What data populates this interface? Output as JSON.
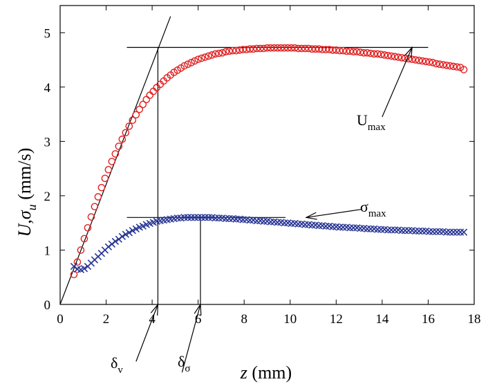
{
  "chart_data": {
    "type": "scatter",
    "xlabel": {
      "var": "z",
      "unit": " (mm)"
    },
    "ylabel": {
      "main": "U,σ",
      "sub": "u",
      "unit": " (mm/s)"
    },
    "xlim": [
      0,
      18
    ],
    "ylim": [
      0,
      5.5
    ],
    "x_ticks": [
      0,
      2,
      4,
      6,
      8,
      10,
      12,
      14,
      16,
      18
    ],
    "y_ticks": [
      0,
      1,
      2,
      3,
      4,
      5
    ],
    "grid": false,
    "series": [
      {
        "marker": "circle",
        "color": "#e02020",
        "x": [
          0.6,
          0.75,
          0.9,
          1.05,
          1.2,
          1.35,
          1.5,
          1.65,
          1.8,
          1.95,
          2.1,
          2.25,
          2.4,
          2.55,
          2.7,
          2.85,
          3.0,
          3.15,
          3.3,
          3.45,
          3.6,
          3.75,
          3.9,
          4.05,
          4.2,
          4.35,
          4.5,
          4.65,
          4.8,
          4.95,
          5.1,
          5.25,
          5.4,
          5.55,
          5.7,
          5.85,
          6.0,
          6.15,
          6.3,
          6.45,
          6.6,
          6.75,
          6.9,
          7.05,
          7.2,
          7.35,
          7.5,
          7.65,
          7.8,
          7.95,
          8.1,
          8.25,
          8.4,
          8.55,
          8.7,
          8.85,
          9.0,
          9.15,
          9.3,
          9.45,
          9.6,
          9.75,
          9.9,
          10.05,
          10.2,
          10.35,
          10.5,
          10.65,
          10.8,
          10.95,
          11.1,
          11.25,
          11.4,
          11.55,
          11.7,
          11.85,
          12.0,
          12.15,
          12.3,
          12.45,
          12.6,
          12.75,
          12.9,
          13.05,
          13.2,
          13.35,
          13.5,
          13.65,
          13.8,
          13.95,
          14.1,
          14.25,
          14.4,
          14.55,
          14.7,
          14.85,
          15.0,
          15.15,
          15.3,
          15.45,
          15.6,
          15.75,
          15.9,
          16.05,
          16.2,
          16.35,
          16.5,
          16.65,
          16.8,
          16.95,
          17.1,
          17.25,
          17.4,
          17.55
        ],
        "y": [
          0.55,
          0.78,
          1.0,
          1.21,
          1.41,
          1.61,
          1.8,
          1.98,
          2.15,
          2.32,
          2.48,
          2.63,
          2.77,
          2.91,
          3.04,
          3.16,
          3.28,
          3.39,
          3.49,
          3.59,
          3.68,
          3.77,
          3.85,
          3.92,
          3.99,
          4.05,
          4.11,
          4.17,
          4.22,
          4.27,
          4.31,
          4.35,
          4.39,
          4.42,
          4.45,
          4.48,
          4.51,
          4.53,
          4.55,
          4.57,
          4.59,
          4.61,
          4.62,
          4.63,
          4.65,
          4.66,
          4.67,
          4.67,
          4.68,
          4.69,
          4.69,
          4.7,
          4.7,
          4.71,
          4.71,
          4.71,
          4.72,
          4.72,
          4.72,
          4.72,
          4.72,
          4.72,
          4.72,
          4.72,
          4.72,
          4.71,
          4.71,
          4.71,
          4.71,
          4.7,
          4.7,
          4.7,
          4.69,
          4.69,
          4.69,
          4.68,
          4.68,
          4.67,
          4.67,
          4.66,
          4.66,
          4.65,
          4.65,
          4.64,
          4.63,
          4.63,
          4.62,
          4.61,
          4.61,
          4.6,
          4.59,
          4.58,
          4.57,
          4.56,
          4.55,
          4.54,
          4.53,
          4.52,
          4.51,
          4.5,
          4.49,
          4.48,
          4.47,
          4.46,
          4.45,
          4.43,
          4.42,
          4.41,
          4.4,
          4.39,
          4.38,
          4.37,
          4.36,
          4.32
        ]
      },
      {
        "marker": "x",
        "color": "#283593",
        "x": [
          0.6,
          0.75,
          0.9,
          1.05,
          1.2,
          1.35,
          1.5,
          1.65,
          1.8,
          1.95,
          2.1,
          2.25,
          2.4,
          2.55,
          2.7,
          2.85,
          3.0,
          3.15,
          3.3,
          3.45,
          3.6,
          3.75,
          3.9,
          4.05,
          4.2,
          4.35,
          4.5,
          4.65,
          4.8,
          4.95,
          5.1,
          5.25,
          5.4,
          5.55,
          5.7,
          5.85,
          6.0,
          6.15,
          6.3,
          6.45,
          6.6,
          6.75,
          6.9,
          7.05,
          7.2,
          7.35,
          7.5,
          7.65,
          7.8,
          7.95,
          8.1,
          8.25,
          8.4,
          8.55,
          8.7,
          8.85,
          9.0,
          9.15,
          9.3,
          9.45,
          9.6,
          9.75,
          9.9,
          10.05,
          10.2,
          10.35,
          10.5,
          10.65,
          10.8,
          10.95,
          11.1,
          11.25,
          11.4,
          11.55,
          11.7,
          11.85,
          12.0,
          12.15,
          12.3,
          12.45,
          12.6,
          12.75,
          12.9,
          13.05,
          13.2,
          13.35,
          13.5,
          13.65,
          13.8,
          13.95,
          14.1,
          14.25,
          14.4,
          14.55,
          14.7,
          14.85,
          15.0,
          15.15,
          15.3,
          15.45,
          15.6,
          15.75,
          15.9,
          16.05,
          16.2,
          16.35,
          16.5,
          16.65,
          16.8,
          16.95,
          17.1,
          17.25,
          17.4,
          17.55
        ],
        "y": [
          0.7,
          0.65,
          0.64,
          0.66,
          0.7,
          0.76,
          0.82,
          0.88,
          0.94,
          1.0,
          1.06,
          1.11,
          1.16,
          1.2,
          1.25,
          1.29,
          1.32,
          1.36,
          1.39,
          1.42,
          1.44,
          1.47,
          1.49,
          1.51,
          1.53,
          1.54,
          1.55,
          1.56,
          1.57,
          1.58,
          1.59,
          1.59,
          1.6,
          1.6,
          1.6,
          1.6,
          1.6,
          1.6,
          1.6,
          1.6,
          1.6,
          1.59,
          1.59,
          1.59,
          1.58,
          1.58,
          1.58,
          1.57,
          1.57,
          1.56,
          1.56,
          1.55,
          1.55,
          1.54,
          1.54,
          1.53,
          1.53,
          1.52,
          1.52,
          1.51,
          1.51,
          1.5,
          1.5,
          1.49,
          1.49,
          1.48,
          1.48,
          1.47,
          1.47,
          1.46,
          1.46,
          1.45,
          1.45,
          1.44,
          1.44,
          1.43,
          1.43,
          1.42,
          1.42,
          1.42,
          1.41,
          1.41,
          1.41,
          1.4,
          1.4,
          1.39,
          1.39,
          1.39,
          1.38,
          1.38,
          1.38,
          1.37,
          1.37,
          1.37,
          1.37,
          1.36,
          1.36,
          1.36,
          1.36,
          1.35,
          1.35,
          1.35,
          1.35,
          1.34,
          1.34,
          1.34,
          1.34,
          1.34,
          1.33,
          1.33,
          1.33,
          1.33,
          1.33,
          1.33
        ]
      }
    ],
    "reference_lines": [
      {
        "name": "tangent-line",
        "x1": 0.0,
        "y1": 0.0,
        "x2": 4.8,
        "y2": 5.3
      },
      {
        "name": "umax-horizontal",
        "x1": 2.9,
        "y1": 4.73,
        "x2": 16.0,
        "y2": 4.73
      },
      {
        "name": "delta-v-vertical",
        "x1": 4.25,
        "y1": 4.73,
        "x2": 4.25,
        "y2": 0.0
      },
      {
        "name": "sigma-max-horizontal",
        "x1": 2.9,
        "y1": 1.6,
        "x2": 9.8,
        "y2": 1.6
      },
      {
        "name": "delta-sigma-vertical",
        "x1": 6.1,
        "y1": 1.6,
        "x2": 6.1,
        "y2": 0.0
      }
    ],
    "annotations": [
      {
        "name": "umax",
        "main": "U",
        "sub": "max",
        "tail": [
          14.0,
          3.45
        ],
        "head": [
          15.3,
          4.73
        ]
      },
      {
        "name": "sigma-max",
        "main": "σ",
        "sub": "max",
        "tail": [
          13.1,
          1.75
        ],
        "head": [
          10.7,
          1.6
        ]
      },
      {
        "name": "delta-v",
        "main": "δ",
        "sub": "v",
        "tail": [
          3.3,
          -1.05
        ],
        "head": [
          4.25,
          0.0
        ]
      },
      {
        "name": "delta-sigma",
        "main": "δ",
        "sub": "σ",
        "tail": [
          5.3,
          -1.25
        ],
        "head": [
          6.1,
          0.0
        ]
      }
    ]
  }
}
